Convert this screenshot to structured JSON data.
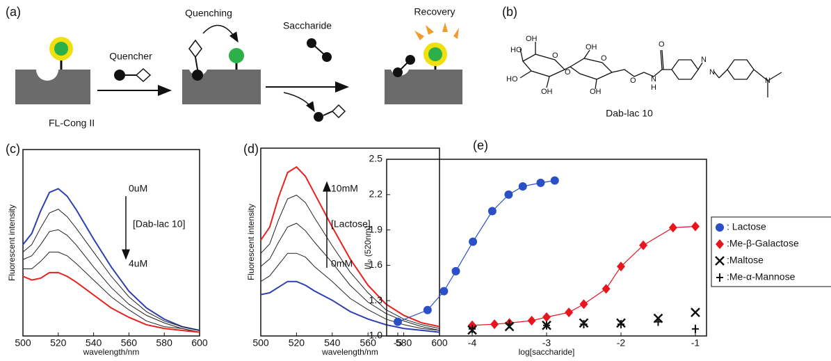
{
  "scheme": {
    "label": "(a)",
    "quencher": "Quencher",
    "quenching": "Quenching",
    "saccharide": "Saccharide",
    "recovery": "Recovery",
    "protein": "FL-Cong II"
  },
  "structure": {
    "label": "(b)",
    "name": "Dab-lac 10",
    "atoms": [
      "HO",
      "OH",
      "HO",
      "OH",
      "O",
      "O",
      "OH",
      "OH",
      "O",
      "O",
      "N",
      "H",
      "O",
      "N",
      "N",
      "N"
    ]
  },
  "chart_data": [
    {
      "type": "line",
      "label": "(c)",
      "xlabel": "wavelength/nm",
      "ylabel": "Fluorescent intensity",
      "x": [
        500,
        505,
        510,
        515,
        520,
        525,
        530,
        540,
        550,
        560,
        570,
        580,
        590,
        600
      ],
      "xlim": [
        500,
        600
      ],
      "xticks": [
        500,
        520,
        540,
        560,
        580,
        600
      ],
      "ylim": [
        0,
        1
      ],
      "annotations": [
        "0uM",
        "[Dab-lac 10]",
        "4uM"
      ],
      "series": [
        {
          "color": "#2d3fb0",
          "values": [
            0.49,
            0.55,
            0.67,
            0.77,
            0.79,
            0.75,
            0.68,
            0.52,
            0.37,
            0.24,
            0.15,
            0.09,
            0.05,
            0.03
          ]
        },
        {
          "color": "#222222",
          "values": [
            0.45,
            0.49,
            0.58,
            0.66,
            0.68,
            0.64,
            0.58,
            0.45,
            0.32,
            0.21,
            0.13,
            0.08,
            0.05,
            0.03
          ]
        },
        {
          "color": "#222222",
          "values": [
            0.41,
            0.43,
            0.49,
            0.56,
            0.57,
            0.54,
            0.49,
            0.37,
            0.26,
            0.17,
            0.11,
            0.07,
            0.04,
            0.02
          ]
        },
        {
          "color": "#222222",
          "values": [
            0.36,
            0.36,
            0.4,
            0.45,
            0.45,
            0.43,
            0.39,
            0.3,
            0.21,
            0.14,
            0.08,
            0.05,
            0.04,
            0.02
          ]
        },
        {
          "color": "#e8201e",
          "values": [
            0.32,
            0.3,
            0.31,
            0.34,
            0.34,
            0.32,
            0.29,
            0.22,
            0.15,
            0.1,
            0.06,
            0.04,
            0.03,
            0.02
          ]
        }
      ]
    },
    {
      "type": "line",
      "label": "(d)",
      "xlabel": "wavelength/nm",
      "ylabel": "Fluorescent intensity",
      "x": [
        500,
        505,
        510,
        515,
        520,
        525,
        530,
        540,
        550,
        560,
        570,
        580,
        590,
        600
      ],
      "xlim": [
        500,
        600
      ],
      "xticks": [
        500,
        520,
        540,
        560,
        580,
        600
      ],
      "ylim": [
        0,
        1
      ],
      "annotations": [
        "10mM",
        "[Lactose]",
        "0mM"
      ],
      "series": [
        {
          "color": "#e8201e",
          "values": [
            0.51,
            0.58,
            0.74,
            0.87,
            0.9,
            0.85,
            0.76,
            0.58,
            0.41,
            0.27,
            0.17,
            0.11,
            0.07,
            0.05
          ]
        },
        {
          "color": "#222222",
          "values": [
            0.44,
            0.49,
            0.62,
            0.73,
            0.75,
            0.71,
            0.63,
            0.48,
            0.34,
            0.23,
            0.14,
            0.09,
            0.06,
            0.04
          ]
        },
        {
          "color": "#222222",
          "values": [
            0.37,
            0.41,
            0.5,
            0.58,
            0.6,
            0.56,
            0.5,
            0.39,
            0.27,
            0.18,
            0.12,
            0.08,
            0.05,
            0.03
          ]
        },
        {
          "color": "#222222",
          "values": [
            0.29,
            0.32,
            0.38,
            0.44,
            0.44,
            0.42,
            0.37,
            0.29,
            0.2,
            0.14,
            0.09,
            0.06,
            0.04,
            0.03
          ]
        },
        {
          "color": "#2d3fb0",
          "values": [
            0.22,
            0.23,
            0.26,
            0.29,
            0.29,
            0.27,
            0.24,
            0.19,
            0.13,
            0.09,
            0.06,
            0.04,
            0.03,
            0.02
          ]
        }
      ]
    },
    {
      "type": "scatter",
      "label": "(e)",
      "xlabel": "log[saccharide]",
      "ylabel": "I/I₀ (520nm)",
      "xlim": [
        -5.15,
        -0.85
      ],
      "xticks": [
        -5,
        -4,
        -3,
        -2,
        -1
      ],
      "ylim": [
        1.0,
        2.5
      ],
      "yticks": [
        {
          "value": 1.0,
          "label": "1.0"
        },
        1.3,
        1.6,
        1.9,
        2.2,
        2.5
      ],
      "legend": "right",
      "series": [
        {
          "name": ": Lactose",
          "color": "#2a4fc7",
          "marker": "circle",
          "line": true,
          "x": [
            -5.0,
            -4.6,
            -4.38,
            -4.22,
            -3.99,
            -3.73,
            -3.51,
            -3.32,
            -3.08,
            -2.89
          ],
          "values": [
            1.12,
            1.22,
            1.38,
            1.55,
            1.8,
            2.06,
            2.2,
            2.27,
            2.3,
            2.32
          ]
        },
        {
          "name": ":Me-β-Galactose",
          "color": "#e8141e",
          "marker": "diamond",
          "line": true,
          "x": [
            -4,
            -3.7,
            -3.5,
            -3.2,
            -3,
            -2.7,
            -2.5,
            -2.2,
            -2,
            -1.7,
            -1.3,
            -1
          ],
          "values": [
            1.09,
            1.1,
            1.11,
            1.13,
            1.16,
            1.2,
            1.27,
            1.4,
            1.59,
            1.77,
            1.92,
            1.93
          ]
        },
        {
          "name": ":Maltose",
          "color": "#111111",
          "marker": "x",
          "line": false,
          "x": [
            -4,
            -3.5,
            -3,
            -2.5,
            -2,
            -1.5,
            -1
          ],
          "values": [
            1.05,
            1.08,
            1.09,
            1.11,
            1.11,
            1.15,
            1.2
          ]
        },
        {
          "name": ":Me-α-Mannose",
          "color": "#111111",
          "marker": "plus",
          "line": false,
          "x": [
            -4,
            -3.5,
            -3,
            -2.5,
            -2,
            -1.5,
            -1
          ],
          "values": [
            1.06,
            1.1,
            1.09,
            1.1,
            1.1,
            1.12,
            1.06
          ]
        }
      ]
    }
  ]
}
